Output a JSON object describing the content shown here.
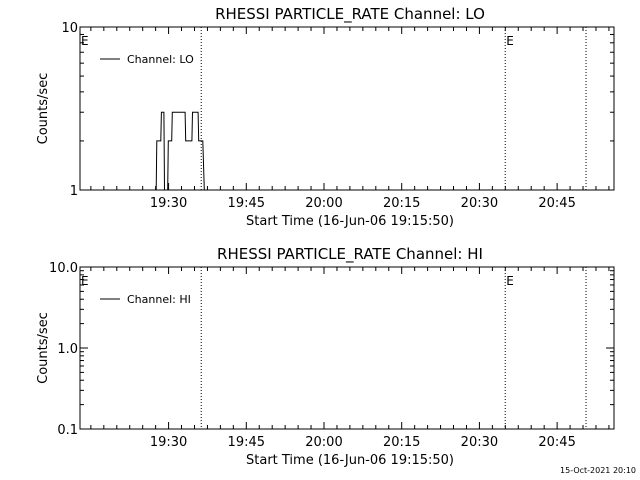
{
  "footer_timestamp": "15-Oct-2021 20:10",
  "chart_data": [
    {
      "type": "line",
      "title": "RHESSI PARTICLE_RATE Channel: LO",
      "xlabel": "Start Time (16-Jun-06 19:15:50)",
      "ylabel": "Counts/sec",
      "log_y": true,
      "xlim": [
        19.215,
        20.933
      ],
      "ylim": [
        1,
        10
      ],
      "x_ticks": [
        {
          "x": 19.5,
          "label": "19:30"
        },
        {
          "x": 19.75,
          "label": "19:45"
        },
        {
          "x": 20.0,
          "label": "20:00"
        },
        {
          "x": 20.25,
          "label": "20:15"
        },
        {
          "x": 20.5,
          "label": "20:30"
        },
        {
          "x": 20.75,
          "label": "20:45"
        }
      ],
      "y_ticks": [
        {
          "y": 1,
          "label": "1"
        },
        {
          "y": 10,
          "label": "10"
        }
      ],
      "event_lines": [
        19.605,
        20.583,
        20.843
      ],
      "event_flags": [
        {
          "x": 19.215,
          "label": "E"
        },
        {
          "x": 20.583,
          "label": "E"
        }
      ],
      "legend": "top-left",
      "series": [
        {
          "name": "Channel: LO",
          "color": "#000000",
          "x": [
            19.46,
            19.462,
            19.475,
            19.477,
            19.485,
            19.487,
            19.497,
            19.499,
            19.51,
            19.512,
            19.535,
            19.545,
            19.553,
            19.555,
            19.575,
            19.577,
            19.595,
            19.597,
            19.61,
            19.615
          ],
          "y": [
            1,
            2,
            2,
            3,
            3,
            1,
            1,
            2,
            2,
            3,
            3,
            3,
            3,
            2,
            2,
            3,
            3,
            2,
            2,
            1
          ]
        }
      ]
    },
    {
      "type": "line",
      "title": "RHESSI PARTICLE_RATE Channel: HI",
      "xlabel": "Start Time (16-Jun-06 19:15:50)",
      "ylabel": "Counts/sec",
      "log_y": true,
      "xlim": [
        19.215,
        20.933
      ],
      "ylim": [
        0.1,
        10
      ],
      "x_ticks": [
        {
          "x": 19.5,
          "label": "19:30"
        },
        {
          "x": 19.75,
          "label": "19:45"
        },
        {
          "x": 20.0,
          "label": "20:00"
        },
        {
          "x": 20.25,
          "label": "20:15"
        },
        {
          "x": 20.5,
          "label": "20:30"
        },
        {
          "x": 20.75,
          "label": "20:45"
        }
      ],
      "y_ticks": [
        {
          "y": 0.1,
          "label": "0.1"
        },
        {
          "y": 1,
          "label": "1.0"
        },
        {
          "y": 10,
          "label": "10.0"
        }
      ],
      "event_lines": [
        19.605,
        20.583,
        20.843
      ],
      "event_flags": [
        {
          "x": 19.215,
          "label": "E"
        },
        {
          "x": 20.583,
          "label": "E"
        }
      ],
      "legend": "top-left",
      "series": [
        {
          "name": "Channel: HI",
          "color": "#000000",
          "x": [],
          "y": []
        }
      ]
    }
  ]
}
